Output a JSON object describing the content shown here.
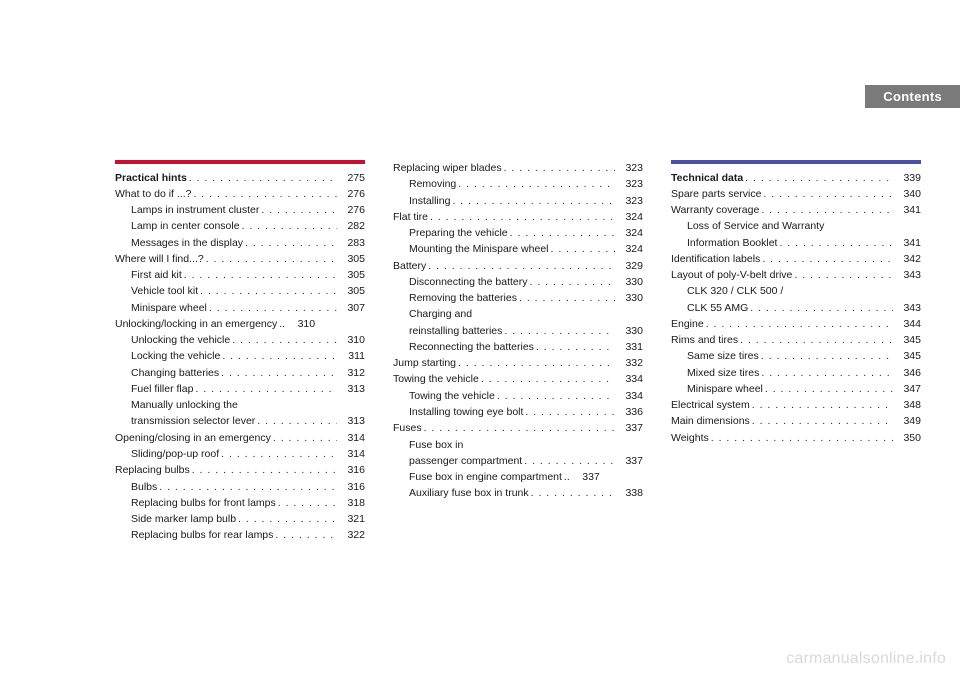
{
  "headerTab": "Contents",
  "watermark": "carmanualsonline.info",
  "colors": {
    "bar1": "#c8102e",
    "bar2": "#4a4fa8",
    "tabBg": "#7a7a7a",
    "tabText": "#ffffff",
    "text": "#1a1a1a",
    "watermark": "#d9d9d9",
    "pageBg": "#ffffff"
  },
  "columns": [
    {
      "bar": "#c8102e",
      "items": [
        {
          "label": "Practical hints",
          "page": "275",
          "bold": true,
          "indent": 0
        },
        {
          "label": "What to do if ...?",
          "page": "276",
          "indent": 0
        },
        {
          "label": "Lamps in instrument cluster",
          "page": "276",
          "indent": 1
        },
        {
          "label": "Lamp in center console",
          "page": "282",
          "indent": 1
        },
        {
          "label": "Messages in the display",
          "page": "283",
          "indent": 1
        },
        {
          "label": "Where will I find...?",
          "page": "305",
          "indent": 0
        },
        {
          "label": "First aid kit",
          "page": "305",
          "indent": 1
        },
        {
          "label": "Vehicle tool kit",
          "page": "305",
          "indent": 1
        },
        {
          "label": "Minispare wheel",
          "page": "307",
          "indent": 1
        },
        {
          "label": "Unlocking/locking in an emergency",
          "page": "310",
          "indent": 0,
          "tight": true
        },
        {
          "label": "Unlocking the vehicle",
          "page": "310",
          "indent": 1
        },
        {
          "label": "Locking the vehicle",
          "page": "311",
          "indent": 1
        },
        {
          "label": "Changing batteries",
          "page": "312",
          "indent": 1
        },
        {
          "label": "Fuel filler flap",
          "page": "313",
          "indent": 1
        },
        {
          "label": "Manually unlocking the",
          "cont": true,
          "indent": 1
        },
        {
          "label": "transmission selector lever",
          "page": "313",
          "indent": 1
        },
        {
          "label": "Opening/closing in an emergency",
          "page": "314",
          "indent": 0
        },
        {
          "label": "Sliding/pop-up roof",
          "page": "314",
          "indent": 1
        },
        {
          "label": "Replacing bulbs",
          "page": "316",
          "indent": 0
        },
        {
          "label": "Bulbs",
          "page": "316",
          "indent": 1
        },
        {
          "label": "Replacing bulbs for front lamps",
          "page": "318",
          "indent": 1
        },
        {
          "label": "Side marker lamp bulb",
          "page": "321",
          "indent": 1
        },
        {
          "label": "Replacing bulbs for rear lamps",
          "page": "322",
          "indent": 1
        }
      ]
    },
    {
      "items": [
        {
          "label": "Replacing wiper blades",
          "page": "323",
          "indent": 0
        },
        {
          "label": "Removing",
          "page": "323",
          "indent": 1
        },
        {
          "label": "Installing",
          "page": "323",
          "indent": 1
        },
        {
          "label": "Flat tire",
          "page": "324",
          "indent": 0
        },
        {
          "label": "Preparing the vehicle",
          "page": "324",
          "indent": 1
        },
        {
          "label": "Mounting the Minispare wheel",
          "page": "324",
          "indent": 1
        },
        {
          "label": "Battery",
          "page": "329",
          "indent": 0
        },
        {
          "label": "Disconnecting the battery",
          "page": "330",
          "indent": 1
        },
        {
          "label": "Removing the batteries",
          "page": "330",
          "indent": 1
        },
        {
          "label": "Charging and",
          "cont": true,
          "indent": 1
        },
        {
          "label": "reinstalling batteries",
          "page": "330",
          "indent": 1
        },
        {
          "label": "Reconnecting the batteries",
          "page": "331",
          "indent": 1
        },
        {
          "label": "Jump starting",
          "page": "332",
          "indent": 0
        },
        {
          "label": "Towing the vehicle",
          "page": "334",
          "indent": 0
        },
        {
          "label": "Towing the vehicle",
          "page": "334",
          "indent": 1
        },
        {
          "label": "Installing towing eye bolt",
          "page": "336",
          "indent": 1
        },
        {
          "label": "Fuses",
          "page": "337",
          "indent": 0
        },
        {
          "label": "Fuse box in",
          "cont": true,
          "indent": 1
        },
        {
          "label": "passenger compartment",
          "page": "337",
          "indent": 1
        },
        {
          "label": "Fuse box in engine compartment",
          "page": "337",
          "indent": 1,
          "tight": true
        },
        {
          "label": "Auxiliary fuse box in trunk",
          "page": "338",
          "indent": 1
        }
      ]
    },
    {
      "bar": "#4a4fa8",
      "items": [
        {
          "label": "Technical data",
          "page": "339",
          "bold": true,
          "indent": 0
        },
        {
          "label": "Spare parts service",
          "page": "340",
          "indent": 0
        },
        {
          "label": "Warranty coverage",
          "page": "341",
          "indent": 0
        },
        {
          "label": "Loss of Service and Warranty",
          "cont": true,
          "indent": 1
        },
        {
          "label": "Information Booklet",
          "page": "341",
          "indent": 1
        },
        {
          "label": "Identification labels",
          "page": "342",
          "indent": 0
        },
        {
          "label": "Layout of poly-V-belt drive",
          "page": "343",
          "indent": 0
        },
        {
          "label": "CLK 320 / CLK 500 /",
          "cont": true,
          "indent": 1
        },
        {
          "label": "CLK 55 AMG",
          "page": "343",
          "indent": 1
        },
        {
          "label": "Engine",
          "page": "344",
          "indent": 0
        },
        {
          "label": "Rims and tires",
          "page": "345",
          "indent": 0
        },
        {
          "label": "Same size tires",
          "page": "345",
          "indent": 1
        },
        {
          "label": "Mixed size tires",
          "page": "346",
          "indent": 1
        },
        {
          "label": "Minispare wheel",
          "page": "347",
          "indent": 1
        },
        {
          "label": "Electrical system",
          "page": "348",
          "indent": 0
        },
        {
          "label": "Main dimensions",
          "page": "349",
          "indent": 0
        },
        {
          "label": "Weights",
          "page": "350",
          "indent": 0
        }
      ]
    }
  ]
}
